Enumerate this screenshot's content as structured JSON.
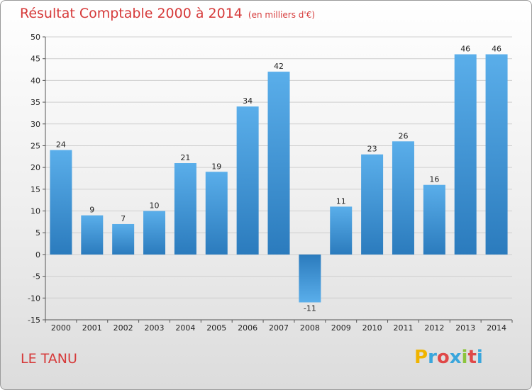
{
  "chart_data": {
    "type": "bar",
    "title": "Résultat Comptable 2000 à 2014",
    "subtitle": "(en milliers d'€)",
    "xlabel": "",
    "ylabel": "",
    "ylim": [
      -15,
      50
    ],
    "yticks": [
      50,
      45,
      40,
      35,
      30,
      25,
      20,
      15,
      10,
      5,
      0,
      -5,
      -10,
      -15
    ],
    "ytick_labels": [
      "50",
      "45",
      "40",
      "35",
      "30",
      "25",
      "20",
      "15",
      "10",
      "5",
      "0",
      "-5",
      "-10",
      "-15"
    ],
    "categories": [
      "2000",
      "2001",
      "2002",
      "2003",
      "2004",
      "2005",
      "2006",
      "2007",
      "2008",
      "2009",
      "2010",
      "2011",
      "2012",
      "2013",
      "2014"
    ],
    "values": [
      24,
      9,
      7,
      10,
      21,
      19,
      34,
      42,
      -11,
      11,
      23,
      26,
      16,
      46,
      46
    ],
    "value_labels": [
      "24",
      "9",
      "7",
      "10",
      "21",
      "19",
      "34",
      "42",
      "-11",
      "11",
      "23",
      "26",
      "16",
      "46",
      "46"
    ],
    "grid": true,
    "bar_color_top": "#5aaeea",
    "bar_color_bottom": "#2b7bbd"
  },
  "footer": {
    "place": "LE TANU",
    "brand_letters": [
      "P",
      "r",
      "o",
      "x",
      "i",
      "t",
      "i"
    ],
    "brand_colors": [
      "#f0b400",
      "#3aa6dc",
      "#e04848",
      "#3aa6dc",
      "#8cc43c",
      "#e04848",
      "#3aa6dc"
    ]
  }
}
